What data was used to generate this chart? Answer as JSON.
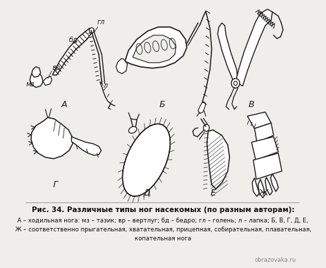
{
  "title": "Рис. 34. Различные типы ног насекомых (по разным авторам):",
  "caption_line1": "А – ходильная нога: мз – тазик; вр – вертлуг; бд – бедро; гл – голень; л – лапка; Б, В, Г, Д, Е,",
  "caption_line2": "Ж – соответственно прыгательная, хватательная, прицепная, собирательная, плавательная,",
  "caption_line3": "копательная нога",
  "watermark": "obrazovaka.ru",
  "bg_color": "#f0eeea",
  "line_color": "#1a1a1a",
  "text_color": "#111111"
}
